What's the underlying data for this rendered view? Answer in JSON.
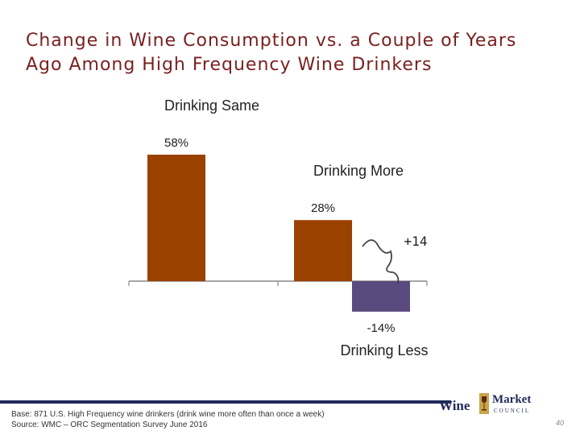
{
  "title": {
    "line1": "Change in Wine Consumption vs. a Couple of Years",
    "line2": "Ago Among High Frequency Wine Drinkers"
  },
  "chart_data": {
    "type": "bar",
    "categories": [
      "Drinking Same",
      "Drinking More",
      "Drinking Less"
    ],
    "values": [
      58,
      28,
      -14
    ],
    "value_labels": [
      "58%",
      "28%",
      "-14%"
    ],
    "colors": [
      "#9a4100",
      "#9a4100",
      "#5b4a7e"
    ],
    "annotation": "+14",
    "ylim": [
      -20,
      65
    ]
  },
  "footnote": {
    "line1": "Base: 871 U.S. High Frequency wine drinkers (drink wine more often than once a week)",
    "line2": "Source: WMC – ORC Segmentation Survey June 2016"
  },
  "logo": {
    "word1": "Wine",
    "word2": "Market",
    "word3": "COUNCIL"
  },
  "page_number": "40"
}
